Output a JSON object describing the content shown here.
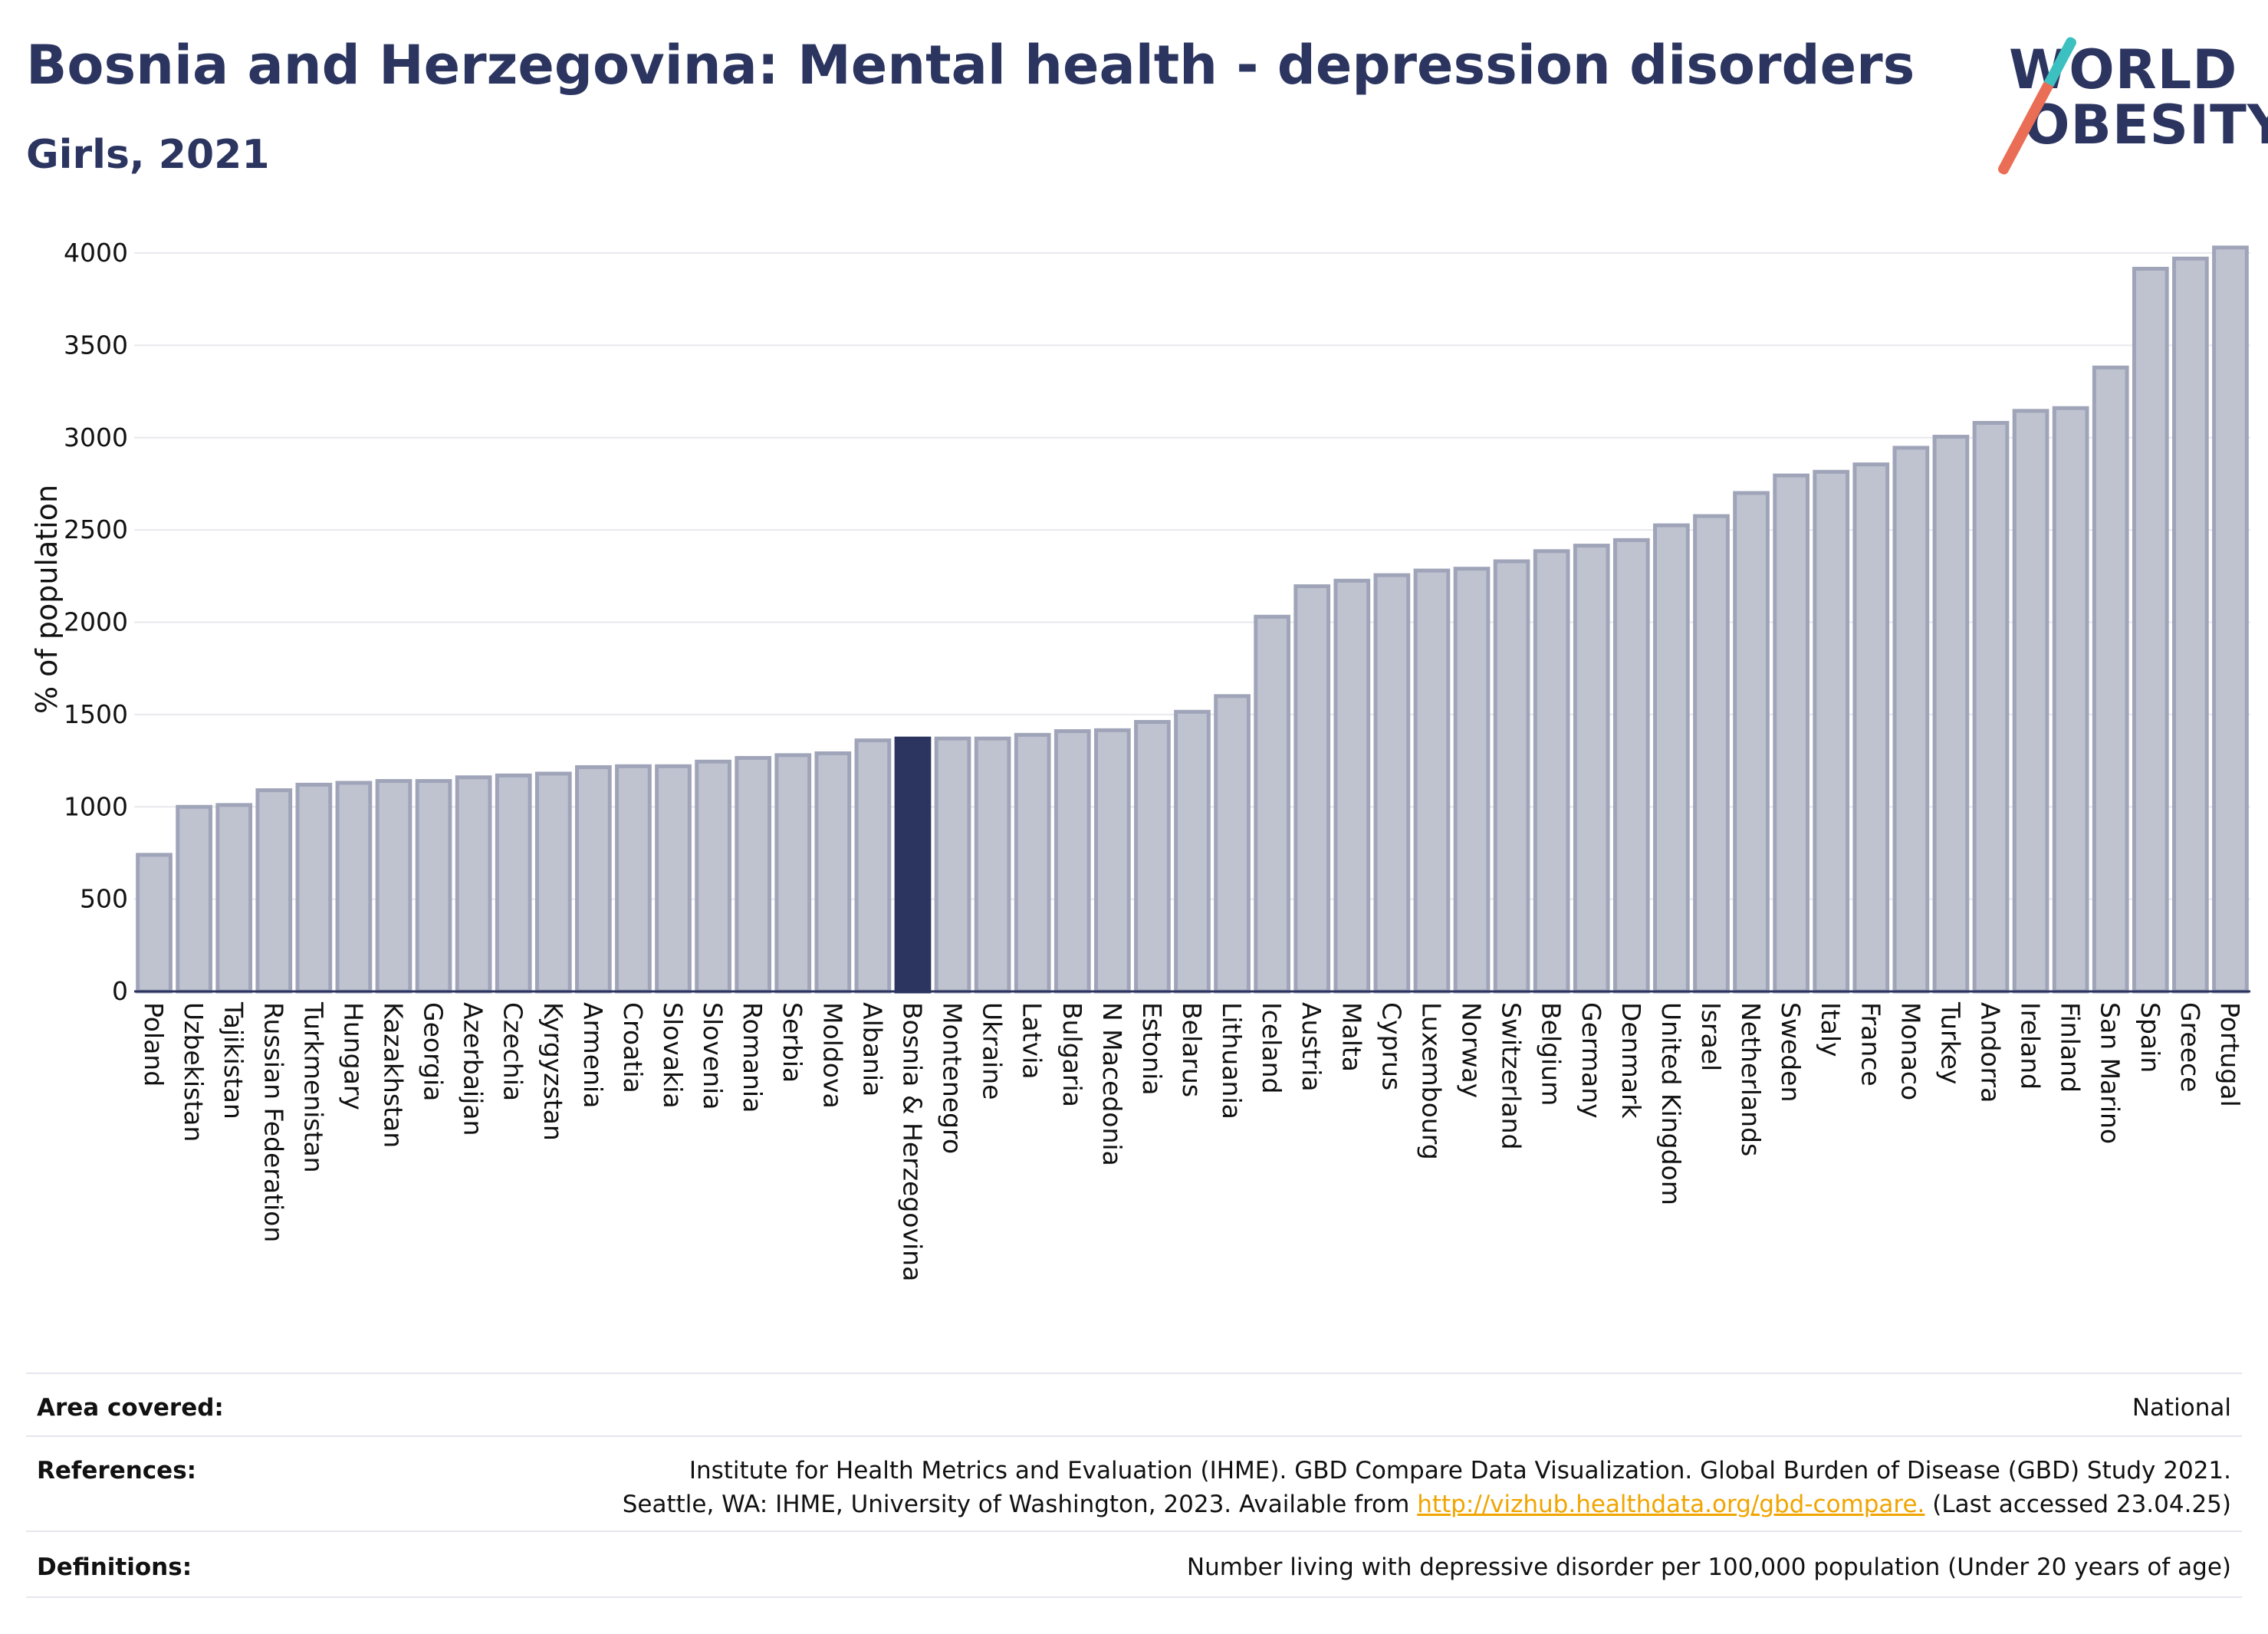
{
  "header": {
    "title": "Bosnia and Herzegovina: Mental health - depression disorders",
    "subtitle": "Girls, 2021"
  },
  "logo": {
    "line1": "WORLD",
    "line2": "OBESITY"
  },
  "colors": {
    "bar": "#bfc3d0",
    "bar_border": "#9fa4b9",
    "highlight": "#2b3560",
    "title": "#2b3560",
    "link": "#f0a500"
  },
  "chart_data": {
    "type": "bar",
    "ylabel": "% of population",
    "ylim": [
      0,
      4100
    ],
    "yticks": [
      0,
      500,
      1000,
      1500,
      2000,
      2500,
      3000,
      3500,
      4000
    ],
    "grid": true,
    "highlight": "Bosnia & Herzegovina",
    "categories": [
      "Poland",
      "Uzbekistan",
      "Tajikistan",
      "Russian Federation",
      "Turkmenistan",
      "Hungary",
      "Kazakhstan",
      "Georgia",
      "Azerbaijan",
      "Czechia",
      "Kyrgyzstan",
      "Armenia",
      "Croatia",
      "Slovakia",
      "Slovenia",
      "Romania",
      "Serbia",
      "Moldova",
      "Albania",
      "Bosnia & Herzegovina",
      "Montenegro",
      "Ukraine",
      "Latvia",
      "Bulgaria",
      "N Macedonia",
      "Estonia",
      "Belarus",
      "Lithuania",
      "Iceland",
      "Austria",
      "Malta",
      "Cyprus",
      "Luxembourg",
      "Norway",
      "Switzerland",
      "Belgium",
      "Germany",
      "Denmark",
      "United Kingdom",
      "Israel",
      "Netherlands",
      "Sweden",
      "Italy",
      "France",
      "Monaco",
      "Turkey",
      "Andorra",
      "Ireland",
      "Finland",
      "San Marino",
      "Spain",
      "Greece",
      "Portugal"
    ],
    "values": [
      740,
      1000,
      1010,
      1090,
      1120,
      1130,
      1140,
      1140,
      1160,
      1170,
      1180,
      1215,
      1220,
      1220,
      1245,
      1265,
      1280,
      1290,
      1360,
      1370,
      1370,
      1370,
      1390,
      1410,
      1415,
      1460,
      1515,
      1600,
      2030,
      2195,
      2225,
      2255,
      2280,
      2290,
      2330,
      2385,
      2415,
      2445,
      2525,
      2575,
      2700,
      2795,
      2815,
      2855,
      2945,
      3005,
      3080,
      3145,
      3160,
      3380,
      3915,
      3970,
      4030
    ]
  },
  "info": {
    "area_label": "Area covered:",
    "area_value": "National",
    "references_label": "References:",
    "references_line1": "Institute for Health Metrics and Evaluation (IHME). GBD Compare Data Visualization. Global Burden of Disease (GBD) Study 2021.",
    "references_line2_pre": "Seattle, WA: IHME, University of Washington, 2023. Available from ",
    "references_link": "http://vizhub.healthdata.org/gbd-compare.",
    "references_line2_post": " (Last accessed 23.04.25)",
    "definitions_label": "Definitions:",
    "definitions_value": "Number living with depressive disorder per 100,000 population (Under 20 years of age)"
  }
}
